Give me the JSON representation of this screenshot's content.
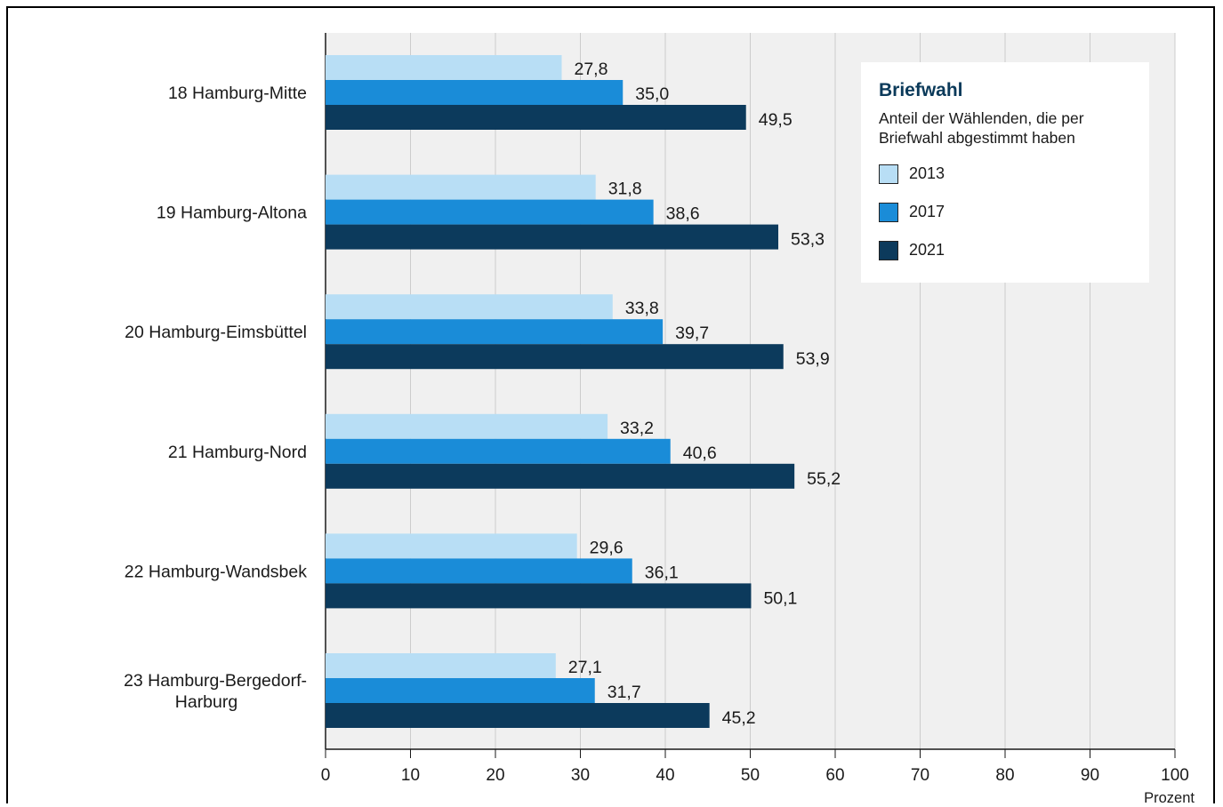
{
  "chart_data": {
    "type": "bar",
    "orientation": "horizontal",
    "title": "Briefwahl",
    "subtitle": "Anteil der Wählenden, die per Briefwahl abgestimmt haben",
    "xlabel": "Prozent",
    "ylabel": "",
    "xlim": [
      0,
      100
    ],
    "x_ticks": [
      0,
      10,
      20,
      30,
      40,
      50,
      60,
      70,
      80,
      90,
      100
    ],
    "grid": true,
    "legend_position": "top-right",
    "categories": [
      [
        "18 Hamburg-Mitte"
      ],
      [
        "19 Hamburg-Altona"
      ],
      [
        "20 Hamburg-Eimsbüttel"
      ],
      [
        "21 Hamburg-Nord"
      ],
      [
        "22 Hamburg-Wandsbek"
      ],
      [
        "23 Hamburg-Bergedorf-",
        "Harburg"
      ]
    ],
    "series": [
      {
        "name": "2013",
        "color": "#b8def5",
        "values": [
          27.8,
          31.8,
          33.8,
          33.2,
          29.6,
          27.1
        ],
        "labels": [
          "27,8",
          "31,8",
          "33,8",
          "33,2",
          "29,6",
          "27,1"
        ]
      },
      {
        "name": "2017",
        "color": "#1a8cd8",
        "values": [
          35.0,
          38.6,
          39.7,
          40.6,
          36.1,
          31.7
        ],
        "labels": [
          "35,0",
          "38,6",
          "39,7",
          "40,6",
          "36,1",
          "31,7"
        ]
      },
      {
        "name": "2021",
        "color": "#0c3a5c",
        "values": [
          49.5,
          53.3,
          53.9,
          55.2,
          50.1,
          45.2
        ],
        "labels": [
          "49,5",
          "53,3",
          "53,9",
          "55,2",
          "50,1",
          "45,2"
        ]
      }
    ],
    "colors": {
      "background": "#f0f0f0",
      "gridline": "#cccccc",
      "axis": "#1a1a1a",
      "title": "#0b3a5a"
    }
  }
}
